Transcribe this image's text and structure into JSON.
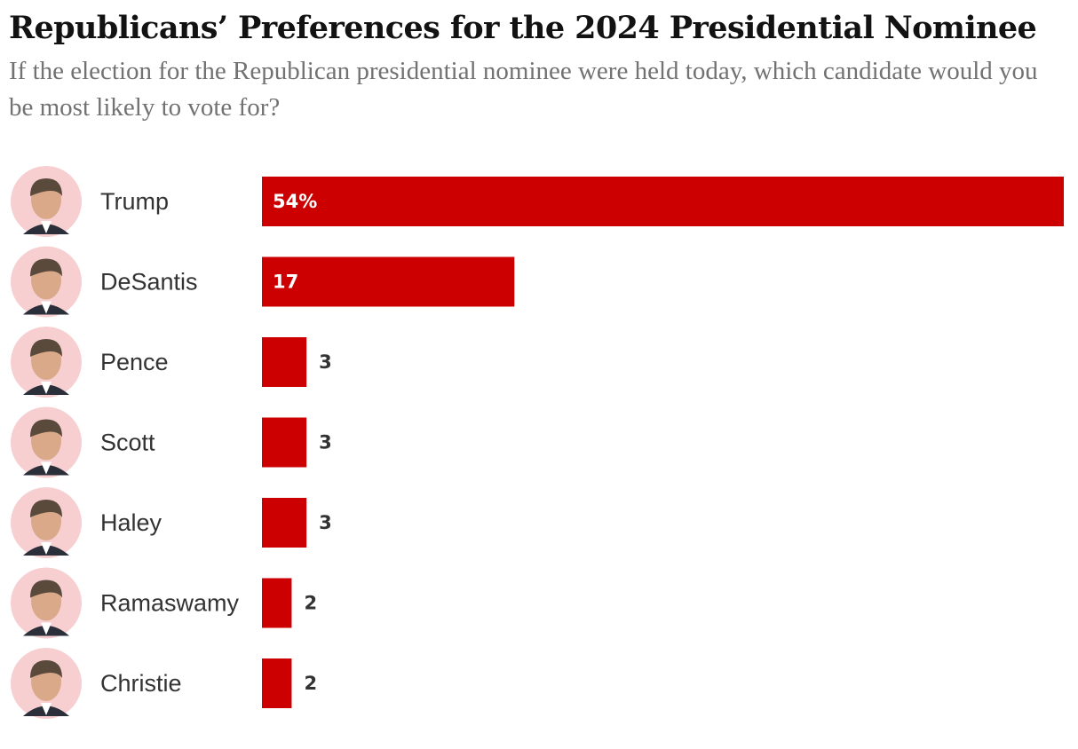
{
  "title": "Republicans’ Preferences for the 2024 Presidential Nominee",
  "subtitle": "If the election for the Republican presidential nominee were held today, which candidate would you be most likely to vote for?",
  "colors": {
    "bar": "#cc0000",
    "avatar_bg": "#f7cfd1",
    "label_inside": "#ffffff",
    "label_outside": "#333333"
  },
  "chart_data": {
    "type": "bar",
    "orientation": "horizontal",
    "categories": [
      "Trump",
      "DeSantis",
      "Pence",
      "Scott",
      "Haley",
      "Ramaswamy",
      "Christie"
    ],
    "values": [
      54,
      17,
      3,
      3,
      3,
      2,
      2
    ],
    "value_labels": [
      "54%",
      "17",
      "3",
      "3",
      "3",
      "2",
      "2"
    ],
    "title": "Republicans’ Preferences for the 2024 Presidential Nominee",
    "subtitle": "If the election for the Republican presidential nominee were held today, which candidate would you be most likely to vote for?",
    "xlabel": "",
    "ylabel": "",
    "xlim": [
      0,
      54
    ],
    "unit": "%",
    "grid": false,
    "legend": "none",
    "row_icons": [
      "candidate-photo-trump",
      "candidate-photo-desantis",
      "candidate-photo-pence",
      "candidate-photo-scott",
      "candidate-photo-haley",
      "candidate-photo-ramaswamy",
      "candidate-photo-christie"
    ]
  }
}
